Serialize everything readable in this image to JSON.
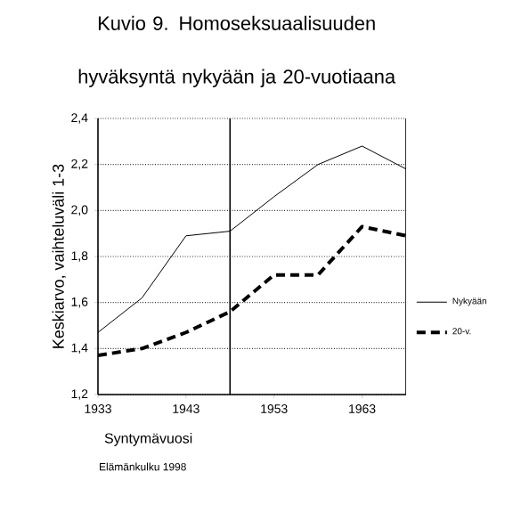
{
  "chart_data": {
    "type": "line",
    "title": "Kuvio 9. Homoseksuaalisuuden hyväksyntä nykyään ja 20-vuotiaana",
    "xlabel": "Syntymävuosi",
    "ylabel": "Keskiarvo, vaihteluväli 1-3",
    "annotations": [
      "Elämänkulku 1998"
    ],
    "x": [
      1933,
      1938,
      1943,
      1948,
      1953,
      1958,
      1963,
      1968
    ],
    "series": [
      {
        "name": "Nykyään",
        "color": "#000000",
        "line_style": "solid",
        "values": [
          1.47,
          1.62,
          1.89,
          1.91,
          2.06,
          2.2,
          2.28,
          2.18
        ]
      },
      {
        "name": "20-v.",
        "color": "#000000",
        "line_style": "dashed",
        "values": [
          1.37,
          1.4,
          1.47,
          1.56,
          1.72,
          1.72,
          1.93,
          1.89
        ]
      }
    ],
    "xlim": [
      1933,
      1968
    ],
    "xticks": [
      1933,
      1943,
      1953,
      1963
    ],
    "ylim": [
      1.2,
      2.4
    ],
    "yticks": [
      {
        "value": 1.2,
        "label": "1,2"
      },
      {
        "value": 1.4,
        "label": "1,4"
      },
      {
        "value": 1.6,
        "label": "1,6"
      },
      {
        "value": 1.8,
        "label": "1,8"
      },
      {
        "value": 2.0,
        "label": "2,0"
      },
      {
        "value": 2.2,
        "label": "2,2"
      },
      {
        "value": 2.4,
        "label": "2,4"
      }
    ],
    "ref_lines": [
      {
        "axis": "x",
        "value": 1948,
        "color": "#000000"
      }
    ],
    "grid": "y",
    "legend": "right",
    "marker": "none"
  }
}
